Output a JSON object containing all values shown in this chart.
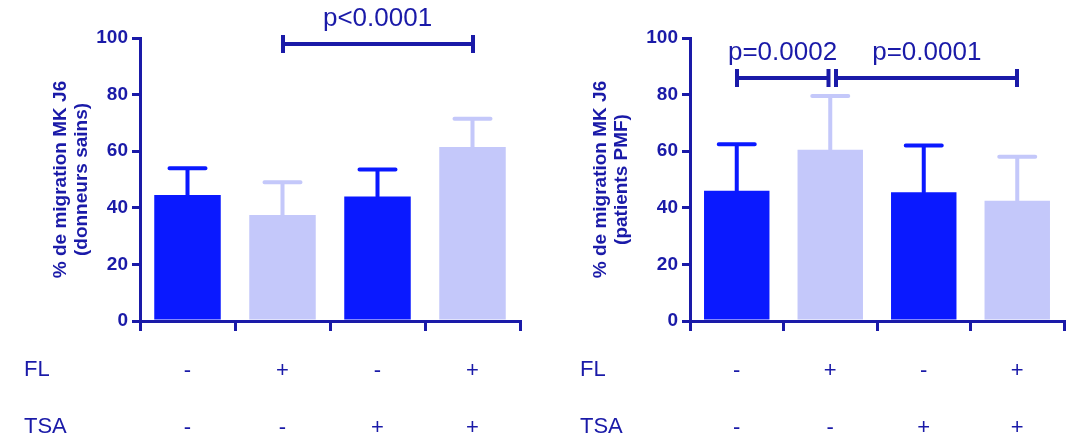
{
  "chart_data": [
    {
      "type": "bar",
      "ylabel": "% de migration MK J6\n(donneurs sains)",
      "categories": [
        "-\n-",
        "+\n-",
        "-\n+",
        "+\n+"
      ],
      "values": [
        44.5,
        37.5,
        44,
        61.5
      ],
      "colors": [
        "#0a19ff",
        "#c4c8fa",
        "#0a19ff",
        "#c4c8fa"
      ],
      "errors": [
        [
          44.5,
          54
        ],
        [
          37.5,
          49
        ],
        [
          44,
          53.5
        ],
        [
          61.5,
          71.5
        ]
      ],
      "ylim": [
        0,
        100
      ],
      "yticks": [
        0,
        20,
        40,
        60,
        80,
        100
      ],
      "grid": false,
      "legend": false,
      "annotations": [
        "p<0.0001",
        "FL",
        "TSA"
      ]
    },
    {
      "type": "bar",
      "ylabel": "% de migration MK J6\n(patients PMF)",
      "categories": [
        "-\n-",
        "+\n-",
        "-\n+",
        "+\n+"
      ],
      "values": [
        46,
        60.5,
        45.5,
        42.5
      ],
      "colors": [
        "#0a19ff",
        "#c4c8fa",
        "#0a19ff",
        "#c4c8fa"
      ],
      "errors": [
        [
          46,
          62.5
        ],
        [
          60.5,
          79.5
        ],
        [
          45.5,
          62
        ],
        [
          42.5,
          58
        ]
      ],
      "ylim": [
        0,
        100
      ],
      "yticks": [
        0,
        20,
        40,
        60,
        80,
        100
      ],
      "grid": false,
      "legend": false,
      "annotations": [
        "p=0.0002",
        "p=0.0001",
        "FL",
        "TSA"
      ]
    }
  ]
}
